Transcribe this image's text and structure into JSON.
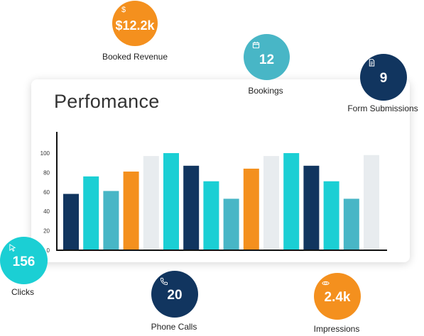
{
  "card": {
    "title": "Perfomance"
  },
  "colors": {
    "navy": "#11355f",
    "teal": "#1bcfd4",
    "cyan": "#48b6c6",
    "orange": "#f4901e",
    "grey": "#e8ecef"
  },
  "chart_data": {
    "type": "bar",
    "title": "Perfomance",
    "xlabel": "",
    "ylabel": "",
    "ylim": [
      0,
      100
    ],
    "yticks": [
      0,
      20,
      40,
      60,
      80,
      100
    ],
    "grid": false,
    "bars": [
      {
        "value": 58,
        "color": "navy"
      },
      {
        "value": 76,
        "color": "teal"
      },
      {
        "value": 61,
        "color": "cyan"
      },
      {
        "value": 81,
        "color": "orange"
      },
      {
        "value": 97,
        "color": "grey"
      },
      {
        "value": 100,
        "color": "teal"
      },
      {
        "value": 87,
        "color": "navy"
      },
      {
        "value": 71,
        "color": "teal"
      },
      {
        "value": 53,
        "color": "cyan"
      },
      {
        "value": 84,
        "color": "orange"
      },
      {
        "value": 97,
        "color": "grey"
      },
      {
        "value": 100,
        "color": "teal"
      },
      {
        "value": 87,
        "color": "navy"
      },
      {
        "value": 71,
        "color": "teal"
      },
      {
        "value": 53,
        "color": "cyan"
      },
      {
        "value": 98,
        "color": "grey"
      }
    ]
  },
  "metrics": {
    "booked_revenue": {
      "value": "$12.2k",
      "label": "Booked Revenue",
      "icon": "dollar-icon",
      "color": "#f4901e"
    },
    "bookings": {
      "value": "12",
      "label": "Bookings",
      "icon": "calendar-icon",
      "color": "#48b6c6"
    },
    "form_submissions": {
      "value": "9",
      "label": "Form Submissions",
      "icon": "document-icon",
      "color": "#11355f"
    },
    "clicks": {
      "value": "156",
      "label": "Clicks",
      "icon": "cursor-icon",
      "color": "#1bcfd4"
    },
    "phone_calls": {
      "value": "20",
      "label": "Phone Calls",
      "icon": "phone-icon",
      "color": "#11355f"
    },
    "impressions": {
      "value": "2.4k",
      "label": "Impressions",
      "icon": "eye-icon",
      "color": "#f4901e"
    }
  }
}
